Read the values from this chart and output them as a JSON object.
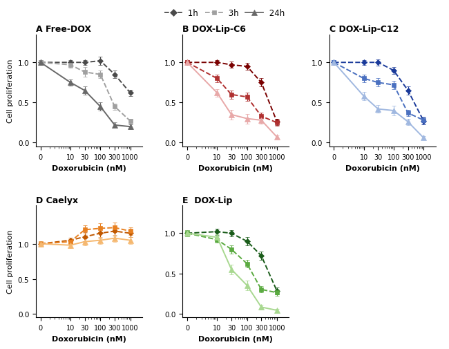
{
  "x_log": [
    1,
    10,
    30,
    100,
    300,
    1000
  ],
  "x_labels": [
    "0",
    "10",
    "30",
    "100",
    "300",
    "1000"
  ],
  "xticks_minor": [
    2,
    3,
    4,
    5,
    6,
    7,
    8,
    9,
    20,
    40,
    50,
    60,
    70,
    80,
    90,
    200,
    400,
    500,
    600,
    700,
    800,
    900
  ],
  "panels": [
    {
      "title": "A Free-DOX",
      "c1": "#4a4a4a",
      "c3": "#a0a0a0",
      "c24": "#686868",
      "y_1h": [
        1.0,
        1.0,
        1.0,
        1.02,
        0.85,
        0.62
      ],
      "y_3h": [
        1.0,
        0.97,
        0.88,
        0.85,
        0.45,
        0.27
      ],
      "y_24h": [
        1.0,
        0.75,
        0.65,
        0.45,
        0.22,
        0.2
      ],
      "e_1h": [
        0.03,
        0.03,
        0.03,
        0.05,
        0.05,
        0.04
      ],
      "e_3h": [
        0.03,
        0.04,
        0.06,
        0.05,
        0.04,
        0.03
      ],
      "e_24h": [
        0.03,
        0.04,
        0.05,
        0.05,
        0.03,
        0.03
      ],
      "ylim": [
        -0.05,
        1.35
      ],
      "yticks": [
        0,
        0.5,
        1.0
      ]
    },
    {
      "title": "B DOX-Lip-C6",
      "c1": "#7a0000",
      "c3": "#b03030",
      "c24": "#e8a8a8",
      "y_1h": [
        1.0,
        1.0,
        0.97,
        0.95,
        0.75,
        0.26
      ],
      "y_3h": [
        1.0,
        0.8,
        0.6,
        0.57,
        0.33,
        0.25
      ],
      "y_24h": [
        1.0,
        0.62,
        0.35,
        0.3,
        0.28,
        0.07
      ],
      "e_1h": [
        0.03,
        0.03,
        0.04,
        0.04,
        0.05,
        0.04
      ],
      "e_3h": [
        0.03,
        0.05,
        0.05,
        0.05,
        0.04,
        0.04
      ],
      "e_24h": [
        0.03,
        0.05,
        0.06,
        0.06,
        0.04,
        0.02
      ],
      "ylim": [
        -0.05,
        1.35
      ],
      "yticks": [
        0,
        0.5,
        1.0
      ]
    },
    {
      "title": "C DOX-Lip-C12",
      "c1": "#1a3a9a",
      "c3": "#4a70c0",
      "c24": "#a0b8e0",
      "y_1h": [
        1.0,
        1.0,
        1.0,
        0.9,
        0.65,
        0.27
      ],
      "y_3h": [
        1.0,
        0.8,
        0.75,
        0.72,
        0.37,
        0.28
      ],
      "y_24h": [
        1.0,
        0.58,
        0.42,
        0.4,
        0.26,
        0.06
      ],
      "e_1h": [
        0.03,
        0.03,
        0.04,
        0.04,
        0.05,
        0.04
      ],
      "e_3h": [
        0.03,
        0.05,
        0.05,
        0.05,
        0.04,
        0.04
      ],
      "e_24h": [
        0.03,
        0.05,
        0.05,
        0.06,
        0.04,
        0.02
      ],
      "ylim": [
        -0.05,
        1.35
      ],
      "yticks": [
        0,
        0.5,
        1.0
      ]
    },
    {
      "title": "D Caelyx",
      "c1": "#c05800",
      "c3": "#e88020",
      "c24": "#f5b870",
      "y_1h": [
        1.0,
        1.05,
        1.1,
        1.15,
        1.18,
        1.15
      ],
      "y_3h": [
        1.0,
        1.03,
        1.2,
        1.22,
        1.23,
        1.18
      ],
      "y_24h": [
        1.0,
        0.98,
        1.03,
        1.05,
        1.08,
        1.05
      ],
      "e_1h": [
        0.04,
        0.04,
        0.06,
        0.06,
        0.06,
        0.05
      ],
      "e_3h": [
        0.04,
        0.04,
        0.06,
        0.07,
        0.07,
        0.05
      ],
      "e_24h": [
        0.04,
        0.04,
        0.05,
        0.05,
        0.05,
        0.05
      ],
      "ylim": [
        -0.05,
        1.55
      ],
      "yticks": [
        0,
        0.5,
        1.0
      ]
    },
    {
      "title": "E  DOX-Lip",
      "c1": "#1a5c1a",
      "c3": "#5aaa40",
      "c24": "#a8d890",
      "y_1h": [
        1.0,
        1.02,
        1.0,
        0.9,
        0.72,
        0.28
      ],
      "y_3h": [
        1.0,
        0.92,
        0.8,
        0.62,
        0.3,
        0.26
      ],
      "y_24h": [
        1.0,
        0.95,
        0.55,
        0.35,
        0.08,
        0.04
      ],
      "e_1h": [
        0.04,
        0.04,
        0.04,
        0.05,
        0.05,
        0.04
      ],
      "e_3h": [
        0.04,
        0.04,
        0.05,
        0.05,
        0.04,
        0.04
      ],
      "e_24h": [
        0.04,
        0.04,
        0.06,
        0.06,
        0.03,
        0.02
      ],
      "ylim": [
        -0.05,
        1.35
      ],
      "yticks": [
        0,
        0.5,
        1.0
      ]
    }
  ],
  "xlabel": "Doxorubicin (nM)",
  "ylabel": "Cell proliferation",
  "leg_c1": "#4a4a4a",
  "leg_c3": "#a0a0a0",
  "leg_c24": "#686868"
}
